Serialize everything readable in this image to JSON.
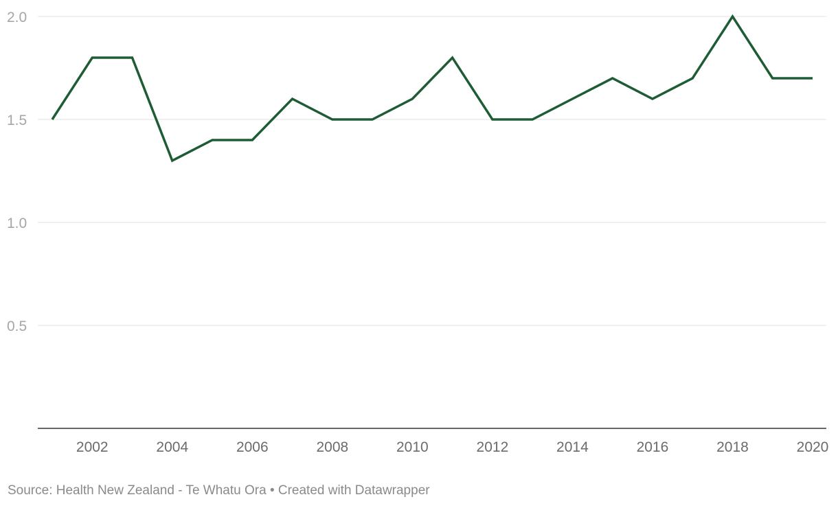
{
  "chart_data": {
    "type": "line",
    "x": [
      2001,
      2002,
      2003,
      2004,
      2005,
      2006,
      2007,
      2008,
      2009,
      2010,
      2011,
      2012,
      2013,
      2014,
      2015,
      2016,
      2017,
      2018,
      2019,
      2020
    ],
    "series": [
      {
        "values": [
          1.5,
          1.8,
          1.8,
          1.3,
          1.4,
          1.4,
          1.6,
          1.5,
          1.5,
          1.6,
          1.8,
          1.5,
          1.5,
          1.6,
          1.7,
          1.6,
          1.7,
          2.0,
          1.7,
          1.7
        ],
        "color": "#1e5c34"
      }
    ],
    "xticks": [
      2002,
      2004,
      2006,
      2008,
      2010,
      2012,
      2014,
      2016,
      2018,
      2020
    ],
    "yticks": [
      0.5,
      1.0,
      1.5,
      2.0
    ],
    "ytick_labels": [
      "0.5",
      "1.0",
      "1.5",
      "2.0"
    ],
    "ylim": [
      0,
      2.0
    ],
    "grid": true,
    "title": "",
    "xlabel": "",
    "ylabel": ""
  },
  "source_line": "Source: Health New Zealand - Te Whatu Ora • Created with Datawrapper"
}
